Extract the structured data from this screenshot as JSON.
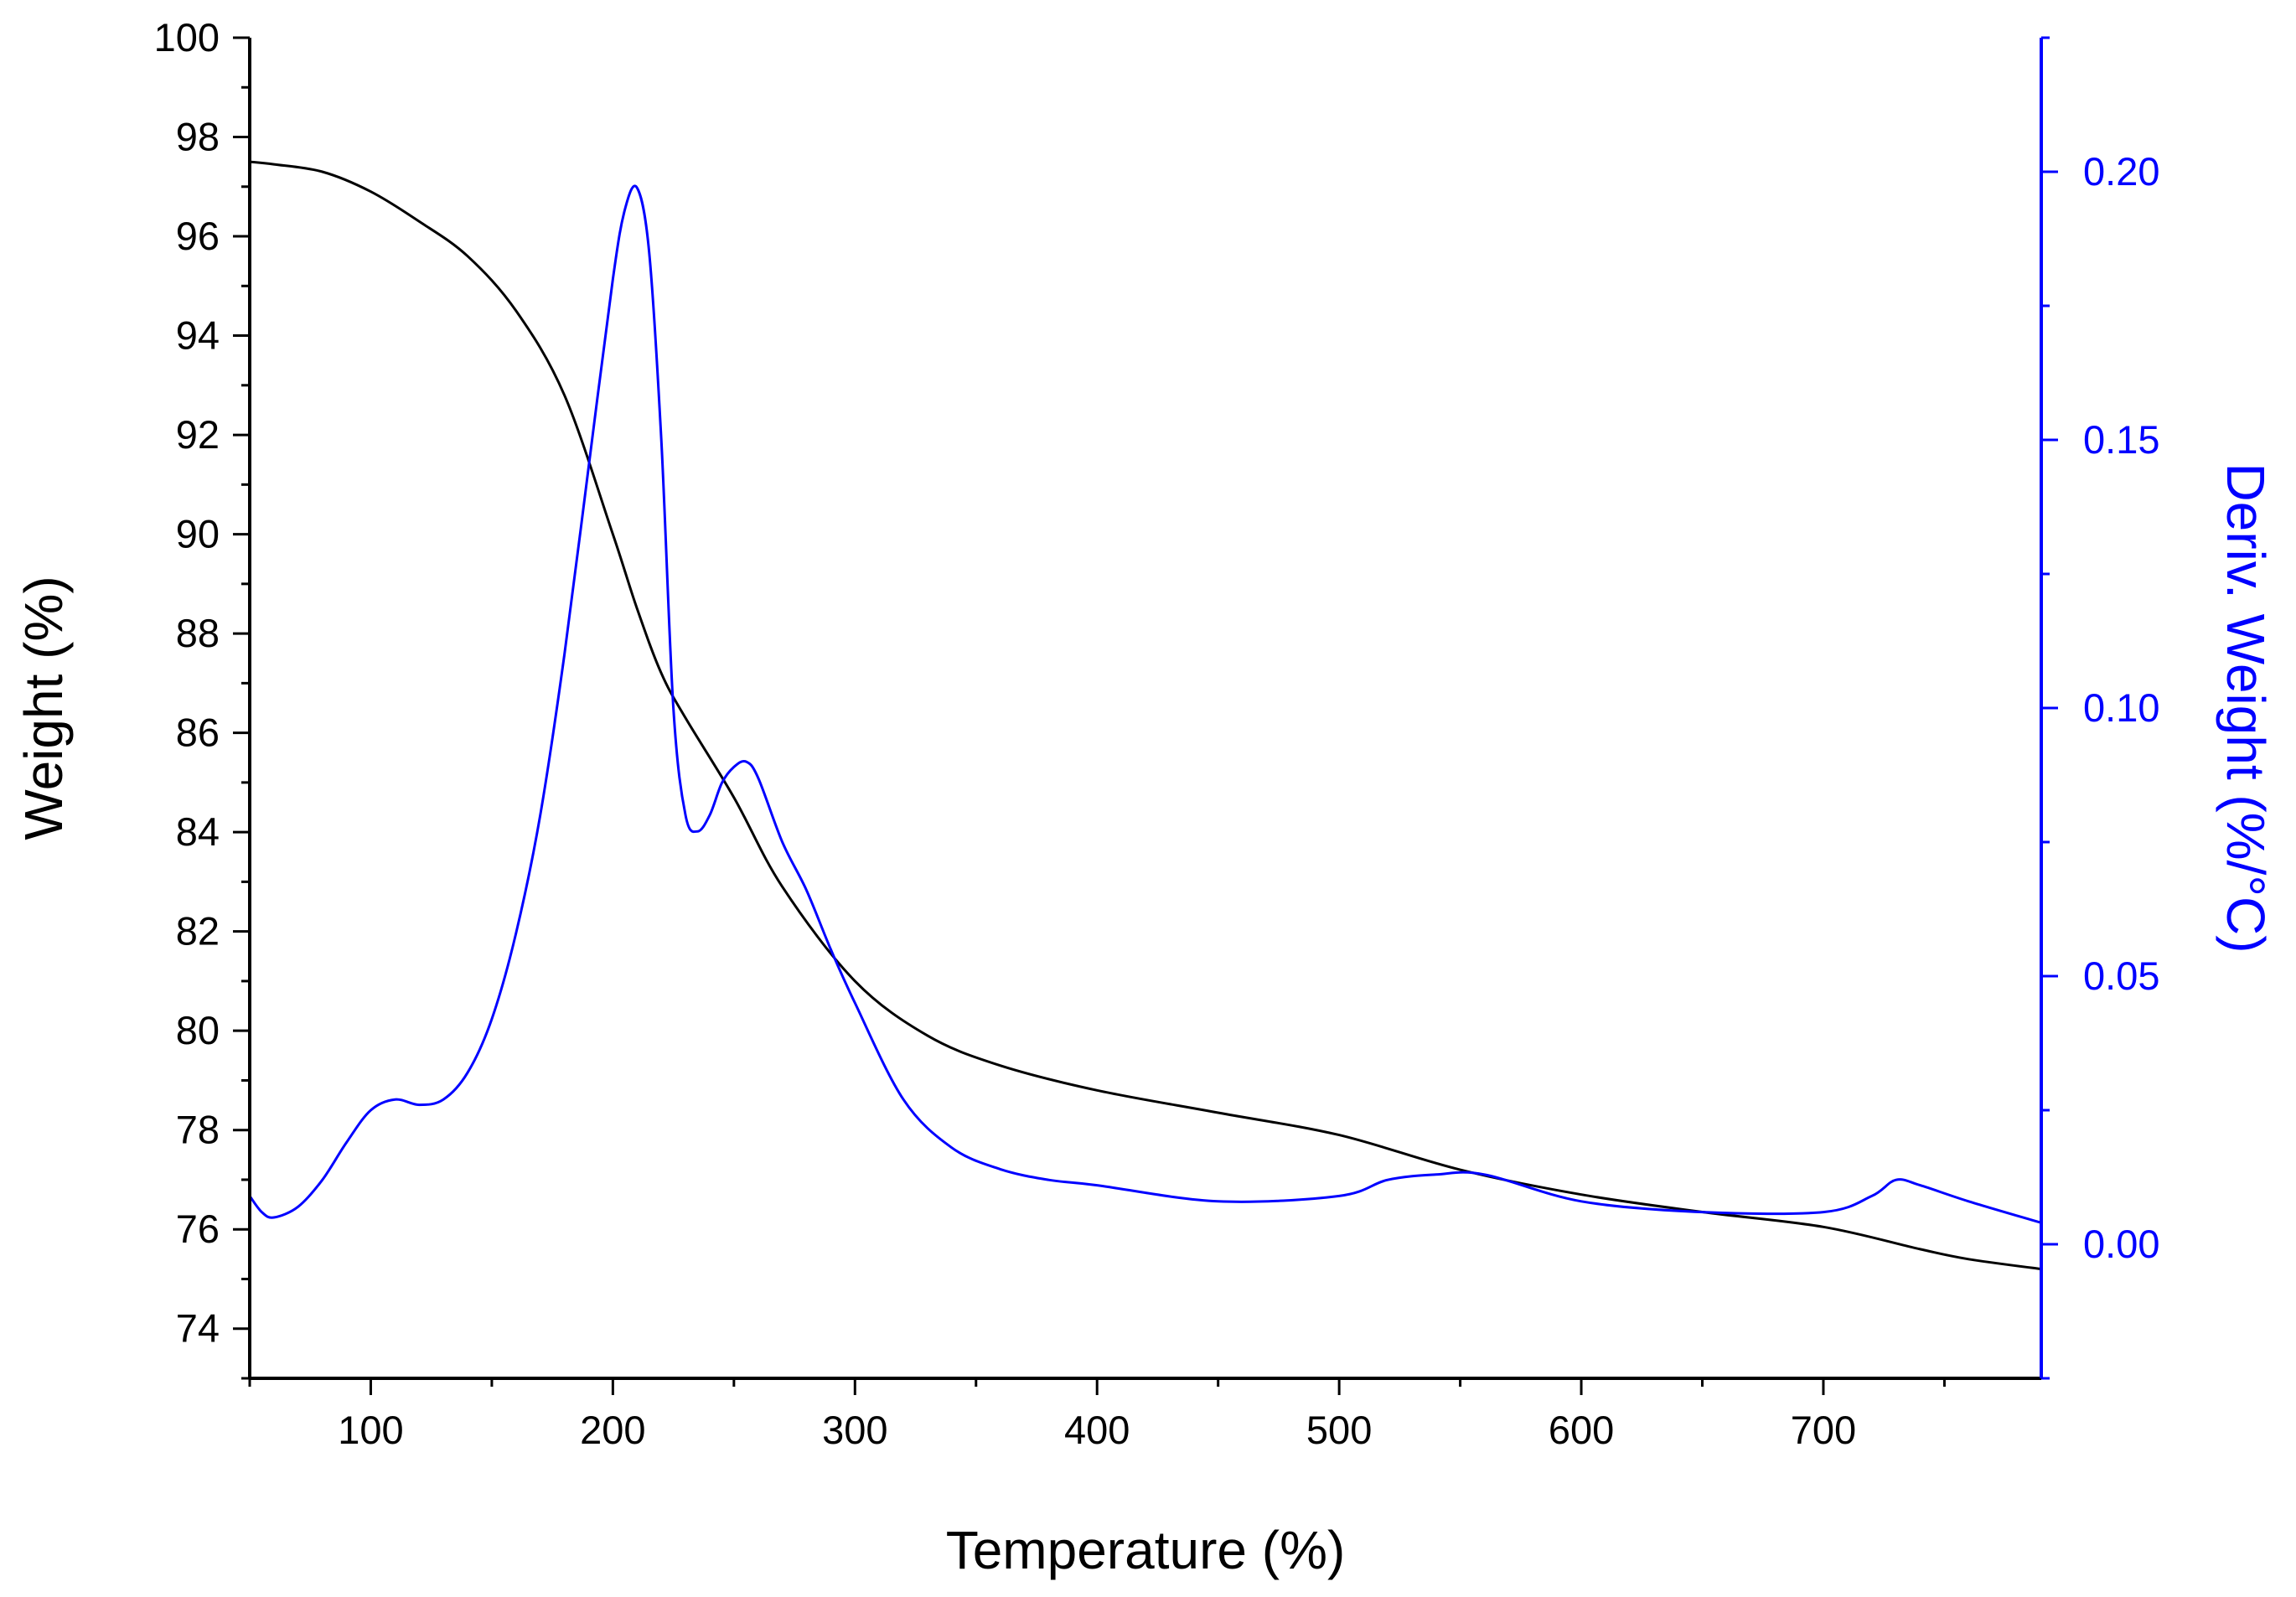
{
  "chart_data": {
    "type": "line",
    "x_axis": {
      "label": "Temperature (%)",
      "range": [
        50,
        790
      ],
      "ticks": [
        100,
        200,
        300,
        400,
        500,
        600,
        700
      ],
      "minor_step": 50
    },
    "y_axis_left": {
      "label": "Weight (%)",
      "range": [
        73,
        100
      ],
      "ticks": [
        74,
        76,
        78,
        80,
        82,
        84,
        86,
        88,
        90,
        92,
        94,
        96,
        98,
        100
      ],
      "minor_step": 1
    },
    "y_axis_right": {
      "label": "Deriv. Weight (%/°C)",
      "range": [
        -0.025,
        0.225
      ],
      "ticks": [
        0.0,
        0.05,
        0.1,
        0.15,
        0.2
      ],
      "tick_labels": [
        "0.00",
        "0.05",
        "0.10",
        "0.15",
        "0.20"
      ],
      "minor_step": 0.025
    },
    "series": [
      {
        "name": "Weight",
        "axis": "left",
        "color": "#000000",
        "x": [
          50,
          60,
          80,
          100,
          120,
          140,
          160,
          180,
          200,
          210,
          220,
          230,
          250,
          270,
          300,
          330,
          360,
          400,
          450,
          500,
          550,
          600,
          650,
          700,
          740,
          760,
          790
        ],
        "values": [
          97.5,
          97.45,
          97.3,
          96.9,
          96.3,
          95.6,
          94.5,
          92.8,
          90.0,
          88.5,
          87.2,
          86.3,
          84.7,
          82.9,
          81.0,
          79.9,
          79.3,
          78.8,
          78.35,
          77.9,
          77.2,
          76.7,
          76.35,
          76.05,
          75.6,
          75.4,
          75.2
        ]
      },
      {
        "name": "Deriv. Weight",
        "axis": "right",
        "color": "#0000ff",
        "x": [
          50,
          55,
          60,
          70,
          80,
          90,
          100,
          110,
          120,
          130,
          140,
          150,
          160,
          170,
          180,
          190,
          200,
          205,
          210,
          215,
          220,
          225,
          230,
          235,
          240,
          245,
          250,
          255,
          260,
          270,
          280,
          290,
          300,
          320,
          340,
          360,
          380,
          400,
          450,
          500,
          520,
          540,
          560,
          600,
          650,
          700,
          720,
          730,
          740,
          760,
          790
        ],
        "values": [
          0.009,
          0.006,
          0.005,
          0.007,
          0.012,
          0.019,
          0.025,
          0.027,
          0.026,
          0.027,
          0.032,
          0.042,
          0.058,
          0.08,
          0.11,
          0.145,
          0.18,
          0.193,
          0.197,
          0.185,
          0.15,
          0.1,
          0.08,
          0.077,
          0.08,
          0.086,
          0.089,
          0.09,
          0.087,
          0.075,
          0.066,
          0.055,
          0.045,
          0.027,
          0.018,
          0.014,
          0.012,
          0.011,
          0.008,
          0.009,
          0.012,
          0.013,
          0.013,
          0.008,
          0.006,
          0.006,
          0.009,
          0.012,
          0.011,
          0.008,
          0.004
        ]
      }
    ]
  }
}
